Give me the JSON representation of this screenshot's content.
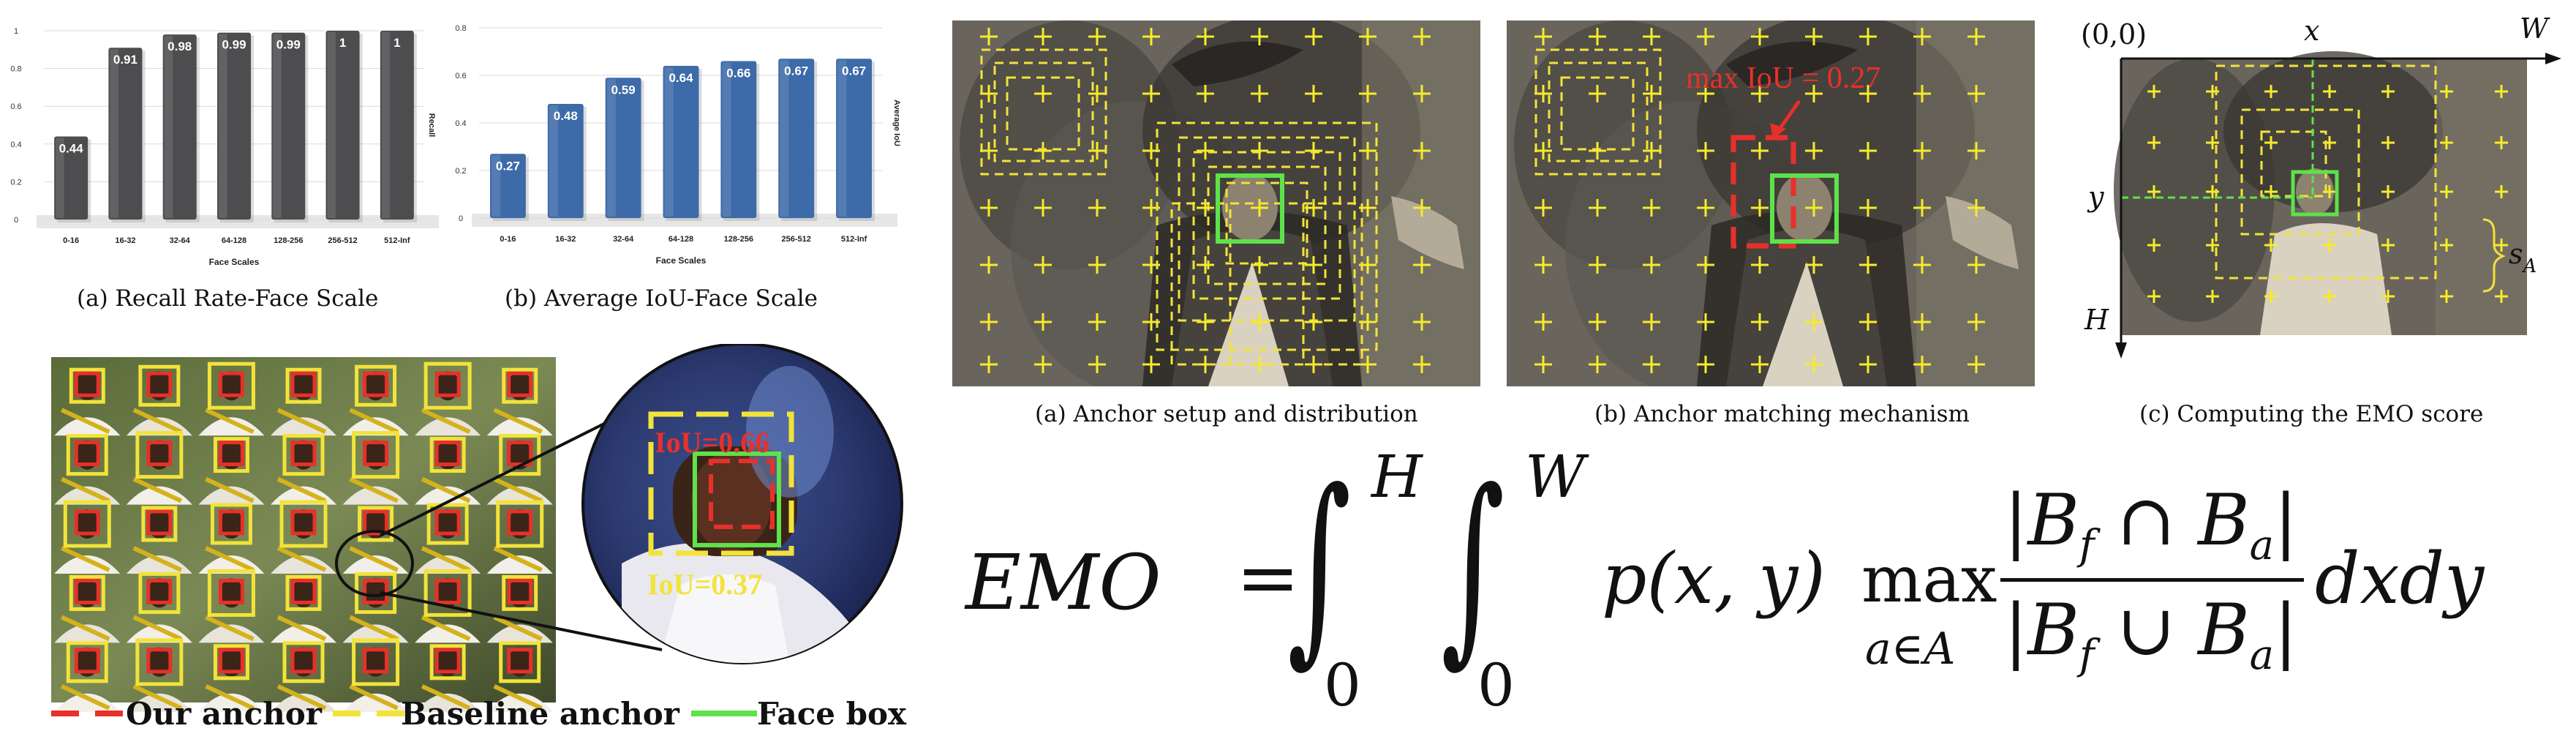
{
  "chart_data": [
    {
      "type": "bar",
      "title": "",
      "categories": [
        "0-16",
        "16-32",
        "32-64",
        "64-128",
        "128-256",
        "256-512",
        "512-Inf"
      ],
      "values": [
        0.44,
        0.91,
        0.98,
        0.99,
        0.99,
        1,
        1
      ],
      "value_labels": [
        "0.44",
        "0.91",
        "0.98",
        "0.99",
        "0.99",
        "1",
        "1"
      ],
      "xlabel": "Face Scales",
      "ylabel": "Recall",
      "ylim": [
        0,
        1
      ],
      "yticks": [
        "0",
        "0.2",
        "0.4",
        "0.6",
        "0.8",
        "1"
      ],
      "color": "#4d4d4f",
      "grid": true
    },
    {
      "type": "bar",
      "title": "",
      "categories": [
        "0-16",
        "16-32",
        "32-64",
        "64-128",
        "128-256",
        "256-512",
        "512-Inf"
      ],
      "values": [
        0.27,
        0.48,
        0.59,
        0.64,
        0.66,
        0.67,
        0.67
      ],
      "value_labels": [
        "0.27",
        "0.48",
        "0.59",
        "0.64",
        "0.66",
        "0.67",
        "0.67"
      ],
      "xlabel": "Face Scales",
      "ylabel": "Average IoU",
      "ylim": [
        0,
        0.8
      ],
      "yticks": [
        "0",
        "0.2",
        "0.4",
        "0.6",
        "0.8"
      ],
      "color": "#3d6aa8",
      "grid": true
    }
  ],
  "captions": {
    "chart_a": "(a)  Recall Rate-Face Scale",
    "chart_b": "(b)  Average IoU-Face Scale",
    "panel_a": "(a)  Anchor setup and distribution",
    "panel_b": "(b)  Anchor matching mechanism",
    "panel_c": "(c)  Computing the EMO score"
  },
  "matching": {
    "max_iou_label": "max IoU = 0.27"
  },
  "emo_axes": {
    "origin": "(0,0)",
    "x": "x",
    "w": "W",
    "y": "y",
    "h": "H",
    "s": "s",
    "s_sub": "A"
  },
  "zoom": {
    "our_iou": "IoU=0.66",
    "baseline_iou": "IoU=0.37"
  },
  "legend": {
    "ours": "Our anchor",
    "baseline": "Baseline anchor",
    "face": "Face box"
  },
  "colors": {
    "ours": "#e8302a",
    "baseline": "#f2e33a",
    "face": "#5ee24a",
    "anchor_cross": "#f5ec2a"
  },
  "equation": {
    "lhs": "EMO",
    "eq": "=",
    "upper_h": "H",
    "upper_w": "W",
    "lower": "0",
    "integrand": "p(x, y)",
    "max": "max",
    "max_sub": "a∈A",
    "numerator": "|B",
    "f": "f",
    "cap": " ∩ B",
    "cup": " ∪ B",
    "a": "a",
    "bar": "|",
    "tail": "dxdy"
  }
}
